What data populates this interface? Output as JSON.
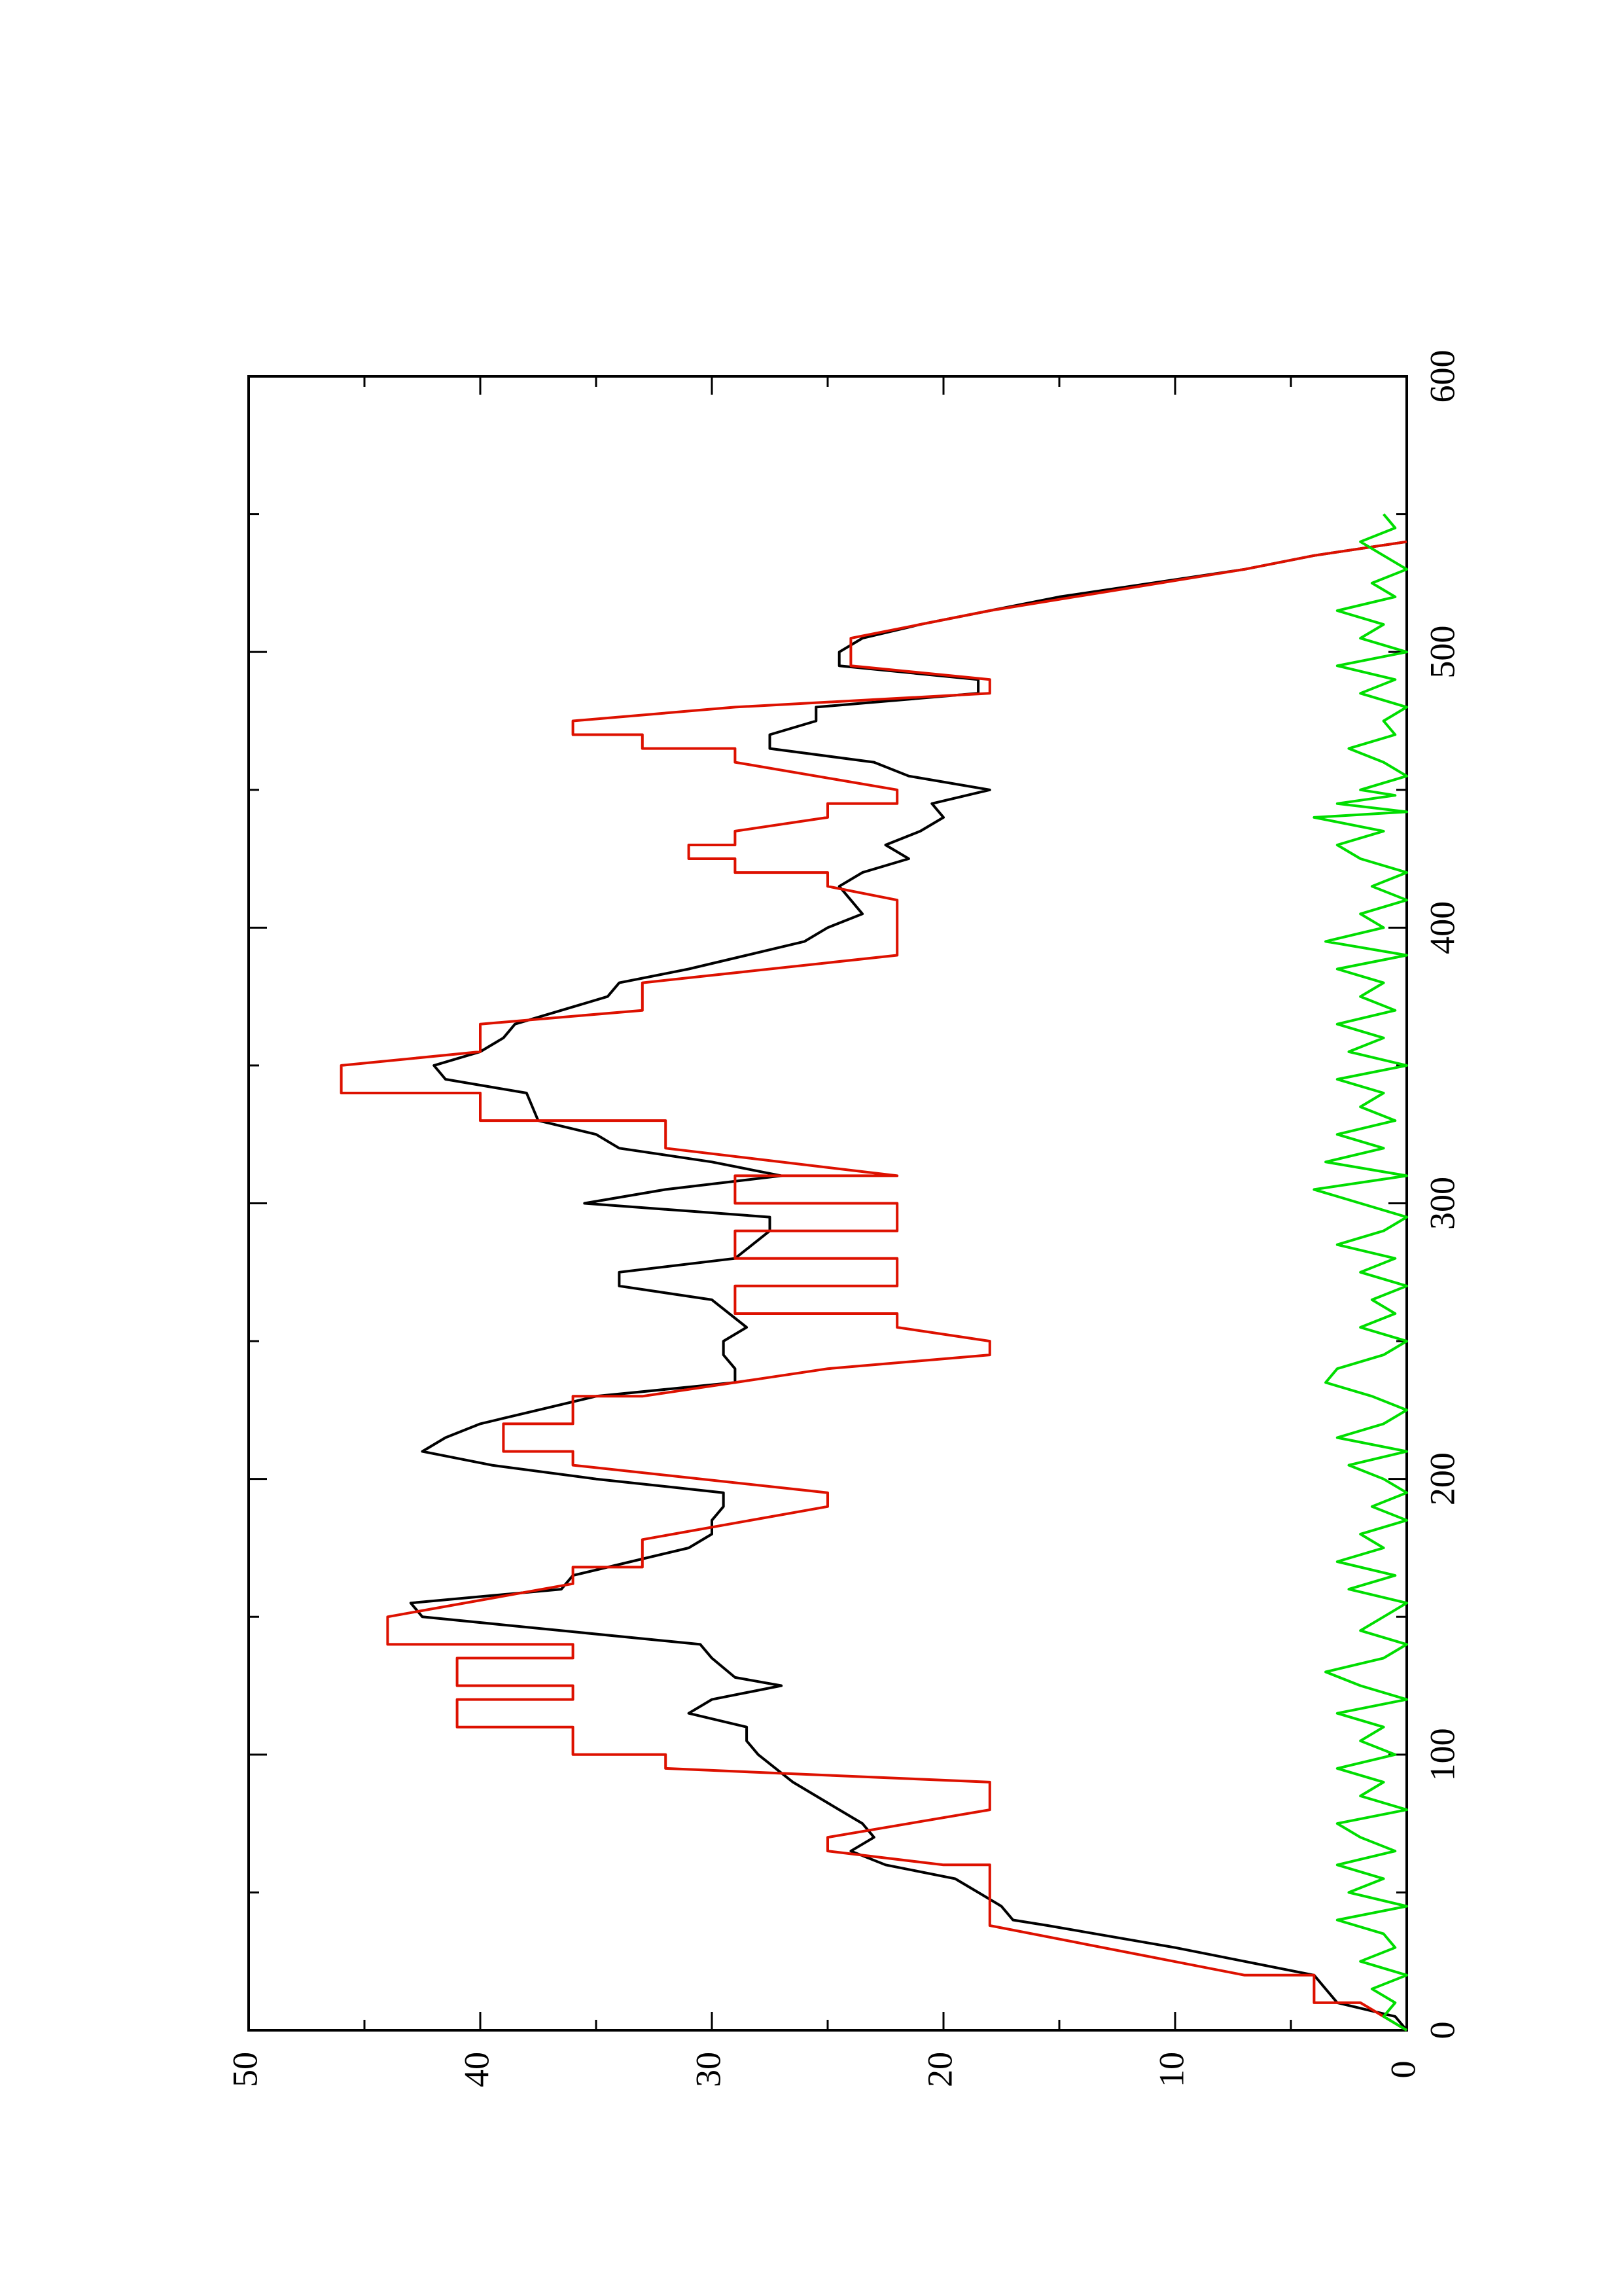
{
  "chart_data": {
    "type": "line",
    "orientation": "rotated-90-ccw",
    "title": "",
    "xlabel": "",
    "ylabel": "",
    "xlim": [
      0,
      600
    ],
    "ylim": [
      0,
      50
    ],
    "x_ticks": [
      0,
      100,
      200,
      300,
      400,
      500,
      600
    ],
    "y_ticks": [
      0,
      10,
      20,
      30,
      40,
      50
    ],
    "x_tick_labels": [
      "0",
      "100",
      "200",
      "300",
      "400",
      "500",
      "600"
    ],
    "y_tick_labels": [
      "0",
      "10",
      "20",
      "30",
      "40",
      "50"
    ],
    "grid": false,
    "legend": "none",
    "series": [
      {
        "color": "#000000",
        "points": [
          [
            0,
            0
          ],
          [
            5,
            0.5
          ],
          [
            10,
            3
          ],
          [
            20,
            4
          ],
          [
            30,
            10
          ],
          [
            38,
            15.5
          ],
          [
            40,
            17
          ],
          [
            45,
            17.5
          ],
          [
            50,
            18.5
          ],
          [
            55,
            19.5
          ],
          [
            60,
            22.5
          ],
          [
            65,
            24
          ],
          [
            70,
            23
          ],
          [
            75,
            23.5
          ],
          [
            80,
            24.5
          ],
          [
            90,
            26.5
          ],
          [
            100,
            28
          ],
          [
            105,
            28.5
          ],
          [
            110,
            28.5
          ],
          [
            115,
            31
          ],
          [
            120,
            30
          ],
          [
            125,
            27
          ],
          [
            128,
            29
          ],
          [
            135,
            30
          ],
          [
            140,
            30.5
          ],
          [
            150,
            42.5
          ],
          [
            155,
            43
          ],
          [
            160,
            36.5
          ],
          [
            165,
            36
          ],
          [
            170,
            33.5
          ],
          [
            175,
            31
          ],
          [
            180,
            30
          ],
          [
            185,
            30
          ],
          [
            190,
            29.5
          ],
          [
            195,
            29.5
          ],
          [
            200,
            35
          ],
          [
            205,
            39.5
          ],
          [
            210,
            42.5
          ],
          [
            215,
            41.5
          ],
          [
            220,
            40
          ],
          [
            230,
            35
          ],
          [
            235,
            29
          ],
          [
            240,
            29
          ],
          [
            245,
            29.5
          ],
          [
            250,
            29.5
          ],
          [
            255,
            28.5
          ],
          [
            265,
            30
          ],
          [
            270,
            34
          ],
          [
            275,
            34
          ],
          [
            280,
            29
          ],
          [
            290,
            27.5
          ],
          [
            295,
            27.5
          ],
          [
            300,
            35.5
          ],
          [
            305,
            32
          ],
          [
            310,
            27
          ],
          [
            315,
            30
          ],
          [
            320,
            34
          ],
          [
            325,
            35
          ],
          [
            330,
            37.5
          ],
          [
            340,
            38
          ],
          [
            345,
            41.5
          ],
          [
            350,
            42
          ],
          [
            355,
            40
          ],
          [
            360,
            39
          ],
          [
            365,
            38.5
          ],
          [
            375,
            34.5
          ],
          [
            380,
            34
          ],
          [
            385,
            31
          ],
          [
            390,
            28.5
          ],
          [
            395,
            26
          ],
          [
            400,
            25
          ],
          [
            405,
            23.5
          ],
          [
            410,
            24
          ],
          [
            415,
            24.5
          ],
          [
            420,
            23.5
          ],
          [
            425,
            21.5
          ],
          [
            430,
            22.5
          ],
          [
            435,
            21
          ],
          [
            440,
            20
          ],
          [
            445,
            20.5
          ],
          [
            450,
            18
          ],
          [
            455,
            21.5
          ],
          [
            460,
            23
          ],
          [
            465,
            27.5
          ],
          [
            470,
            27.5
          ],
          [
            475,
            25.5
          ],
          [
            480,
            25.5
          ],
          [
            485,
            18.5
          ],
          [
            490,
            18.5
          ],
          [
            495,
            24.5
          ],
          [
            500,
            24.5
          ],
          [
            505,
            23.5
          ],
          [
            510,
            21
          ],
          [
            515,
            18
          ],
          [
            520,
            15
          ],
          [
            530,
            7
          ],
          [
            535,
            4
          ],
          [
            540,
            0
          ]
        ]
      },
      {
        "color": "#dd1100",
        "points": [
          [
            0,
            0
          ],
          [
            10,
            2
          ],
          [
            10,
            4
          ],
          [
            20,
            4
          ],
          [
            20,
            7
          ],
          [
            38,
            18
          ],
          [
            60,
            18
          ],
          [
            60,
            20
          ],
          [
            65,
            25
          ],
          [
            70,
            25
          ],
          [
            80,
            18
          ],
          [
            90,
            18
          ],
          [
            95,
            32
          ],
          [
            100,
            32
          ],
          [
            100,
            36
          ],
          [
            110,
            36
          ],
          [
            110,
            41
          ],
          [
            120,
            41
          ],
          [
            120,
            36
          ],
          [
            125,
            36
          ],
          [
            125,
            41
          ],
          [
            135,
            41
          ],
          [
            135,
            36
          ],
          [
            140,
            36
          ],
          [
            140,
            44
          ],
          [
            150,
            44
          ],
          [
            162,
            36
          ],
          [
            168,
            36
          ],
          [
            168,
            33
          ],
          [
            178,
            33
          ],
          [
            190,
            25
          ],
          [
            195,
            25
          ],
          [
            205,
            36
          ],
          [
            210,
            36
          ],
          [
            210,
            39
          ],
          [
            220,
            39
          ],
          [
            220,
            36
          ],
          [
            230,
            36
          ],
          [
            230,
            33
          ],
          [
            240,
            25
          ],
          [
            245,
            18
          ],
          [
            250,
            18
          ],
          [
            255,
            22
          ],
          [
            260,
            22
          ],
          [
            260,
            29
          ],
          [
            270,
            29
          ],
          [
            270,
            22
          ],
          [
            280,
            22
          ],
          [
            280,
            29
          ],
          [
            290,
            29
          ],
          [
            290,
            22
          ],
          [
            300,
            22
          ],
          [
            300,
            29
          ],
          [
            310,
            29
          ],
          [
            310,
            22
          ],
          [
            320,
            32
          ],
          [
            330,
            32
          ],
          [
            330,
            40
          ],
          [
            340,
            40
          ],
          [
            340,
            46
          ],
          [
            350,
            46
          ],
          [
            355,
            40
          ],
          [
            365,
            40
          ],
          [
            370,
            33
          ],
          [
            380,
            33
          ],
          [
            390,
            22
          ],
          [
            400,
            22
          ],
          [
            400,
            22
          ],
          [
            410,
            22
          ],
          [
            415,
            25
          ],
          [
            420,
            25
          ],
          [
            420,
            29
          ],
          [
            425,
            29
          ],
          [
            425,
            31
          ],
          [
            430,
            31
          ],
          [
            430,
            29
          ],
          [
            435,
            29
          ],
          [
            440,
            25
          ],
          [
            445,
            25
          ],
          [
            445,
            22
          ],
          [
            450,
            22
          ],
          [
            460,
            29
          ],
          [
            465,
            29
          ],
          [
            465,
            33
          ],
          [
            470,
            33
          ],
          [
            470,
            36
          ],
          [
            475,
            36
          ],
          [
            480,
            29
          ],
          [
            485,
            18
          ],
          [
            490,
            18
          ],
          [
            495,
            24
          ],
          [
            505,
            24
          ],
          [
            515,
            18
          ],
          [
            530,
            7
          ],
          [
            535,
            4
          ],
          [
            540,
            0
          ]
        ]
      },
      {
        "color": "#00dd00",
        "points": [
          [
            0,
            0
          ],
          [
            5,
            1
          ],
          [
            10,
            0.5
          ],
          [
            15,
            1.5
          ],
          [
            20,
            0
          ],
          [
            25,
            2
          ],
          [
            30,
            0.5
          ],
          [
            35,
            1
          ],
          [
            40,
            3
          ],
          [
            45,
            0
          ],
          [
            50,
            2.5
          ],
          [
            55,
            1
          ],
          [
            60,
            3
          ],
          [
            65,
            0.5
          ],
          [
            70,
            2
          ],
          [
            75,
            3
          ],
          [
            80,
            0
          ],
          [
            85,
            2
          ],
          [
            90,
            1
          ],
          [
            95,
            3
          ],
          [
            100,
            0.5
          ],
          [
            105,
            2
          ],
          [
            110,
            1
          ],
          [
            115,
            3
          ],
          [
            120,
            0
          ],
          [
            125,
            2
          ],
          [
            130,
            3.5
          ],
          [
            135,
            1
          ],
          [
            140,
            0
          ],
          [
            145,
            2
          ],
          [
            150,
            1
          ],
          [
            155,
            0
          ],
          [
            160,
            2.5
          ],
          [
            165,
            0.5
          ],
          [
            170,
            3
          ],
          [
            175,
            1
          ],
          [
            180,
            2
          ],
          [
            185,
            0
          ],
          [
            190,
            1.5
          ],
          [
            195,
            0
          ],
          [
            200,
            1
          ],
          [
            205,
            2.5
          ],
          [
            210,
            0
          ],
          [
            215,
            3
          ],
          [
            220,
            1
          ],
          [
            225,
            0
          ],
          [
            230,
            1.5
          ],
          [
            235,
            3.5
          ],
          [
            240,
            3
          ],
          [
            245,
            1
          ],
          [
            250,
            0
          ],
          [
            255,
            2
          ],
          [
            260,
            0.5
          ],
          [
            265,
            1.5
          ],
          [
            270,
            0
          ],
          [
            275,
            2
          ],
          [
            280,
            0.5
          ],
          [
            285,
            3
          ],
          [
            290,
            1
          ],
          [
            295,
            0
          ],
          [
            300,
            2
          ],
          [
            305,
            4
          ],
          [
            310,
            0
          ],
          [
            315,
            3.5
          ],
          [
            320,
            1
          ],
          [
            325,
            3
          ],
          [
            330,
            0.5
          ],
          [
            335,
            2
          ],
          [
            340,
            1
          ],
          [
            345,
            3
          ],
          [
            350,
            0
          ],
          [
            355,
            2.5
          ],
          [
            360,
            1
          ],
          [
            365,
            3
          ],
          [
            370,
            0.5
          ],
          [
            375,
            2
          ],
          [
            380,
            1
          ],
          [
            385,
            3
          ],
          [
            390,
            0
          ],
          [
            395,
            3.5
          ],
          [
            400,
            1
          ],
          [
            405,
            2
          ],
          [
            410,
            0
          ],
          [
            415,
            1.5
          ],
          [
            420,
            0
          ],
          [
            425,
            2
          ],
          [
            430,
            3
          ],
          [
            435,
            1
          ],
          [
            440,
            4
          ],
          [
            442,
            0
          ],
          [
            445,
            3
          ],
          [
            448,
            0.5
          ],
          [
            450,
            2
          ],
          [
            455,
            0
          ],
          [
            460,
            1
          ],
          [
            465,
            2.5
          ],
          [
            470,
            0.5
          ],
          [
            475,
            1
          ],
          [
            480,
            0
          ],
          [
            485,
            2
          ],
          [
            490,
            0.5
          ],
          [
            495,
            3
          ],
          [
            500,
            0
          ],
          [
            505,
            2
          ],
          [
            510,
            1
          ],
          [
            515,
            3
          ],
          [
            520,
            0.5
          ],
          [
            525,
            1.5
          ],
          [
            530,
            0
          ],
          [
            535,
            1
          ],
          [
            540,
            2
          ],
          [
            545,
            0.5
          ],
          [
            550,
            1
          ]
        ]
      }
    ]
  }
}
